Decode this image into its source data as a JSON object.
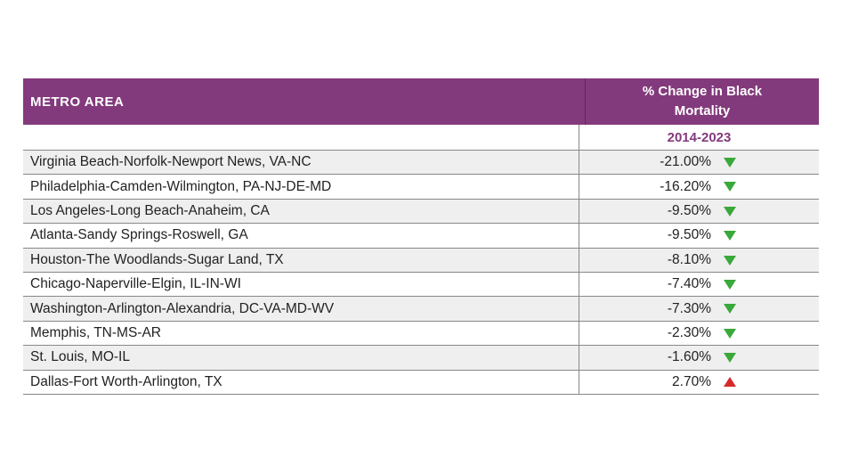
{
  "table": {
    "headers": [
      "METRO AREA",
      "% Change in Black Mortality"
    ],
    "period": "2014-2023",
    "rows": [
      [
        "Virginia Beach-Norfolk-Newport News, VA-NC",
        "-21.00%"
      ],
      [
        "Philadelphia-Camden-Wilmington, PA-NJ-DE-MD",
        "-16.20%"
      ],
      [
        "Los Angeles-Long Beach-Anaheim, CA",
        "-9.50%"
      ],
      [
        "Atlanta-Sandy Springs-Roswell, GA",
        "-9.50%"
      ],
      [
        "Houston-The Woodlands-Sugar Land, TX",
        "-8.10%"
      ],
      [
        "Chicago-Naperville-Elgin, IL-IN-WI",
        "-7.40%"
      ],
      [
        "Washington-Arlington-Alexandria, DC-VA-MD-WV",
        "-7.30%"
      ],
      [
        "Memphis, TN-MS-AR",
        "-2.30%"
      ],
      [
        "St. Louis, MO-IL",
        "-1.60%"
      ],
      [
        "Dallas-Fort Worth-Arlington, TX",
        "2.70%"
      ]
    ]
  }
}
